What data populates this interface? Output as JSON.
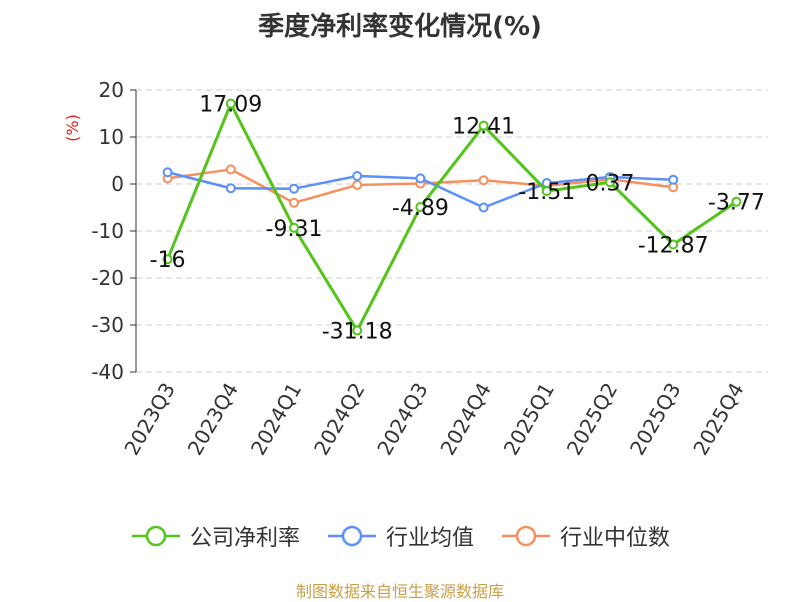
{
  "chart_data": {
    "type": "line",
    "title": "季度净利率变化情况(%)",
    "ylabel": "(%)",
    "xlabel": "",
    "ylim": [
      -40,
      20
    ],
    "yticks": [
      20,
      10,
      0,
      -10,
      -20,
      -30,
      -40
    ],
    "categories": [
      "2023Q3",
      "2023Q4",
      "2024Q1",
      "2024Q2",
      "2024Q3",
      "2024Q4",
      "2025Q1",
      "2025Q2",
      "2025Q3",
      "2025Q4"
    ],
    "grid": true,
    "legend_position": "bottom",
    "series": [
      {
        "name": "公司净利率",
        "color": "#52c41a",
        "show_labels": true,
        "labels": [
          "-16",
          "17.09",
          "-9.31",
          "-31.18",
          "-4.89",
          "12.41",
          "-1.51",
          "0.37",
          "-12.87",
          "-3.77"
        ],
        "values": [
          -16,
          17.09,
          -9.31,
          -31.18,
          -4.89,
          12.41,
          -1.51,
          0.37,
          -12.87,
          -3.77
        ]
      },
      {
        "name": "行业均值",
        "color": "#5b8ff9",
        "show_labels": false,
        "values": [
          2.5,
          -0.9,
          -1.0,
          1.7,
          1.2,
          -5.0,
          0.2,
          1.5,
          0.9,
          null
        ]
      },
      {
        "name": "行业中位数",
        "color": "#f7905d",
        "show_labels": false,
        "values": [
          1.2,
          3.1,
          -4.0,
          -0.2,
          0.1,
          0.8,
          -0.4,
          1.0,
          -0.7,
          null
        ]
      }
    ]
  },
  "source": "制图数据来自恒生聚源数据库"
}
